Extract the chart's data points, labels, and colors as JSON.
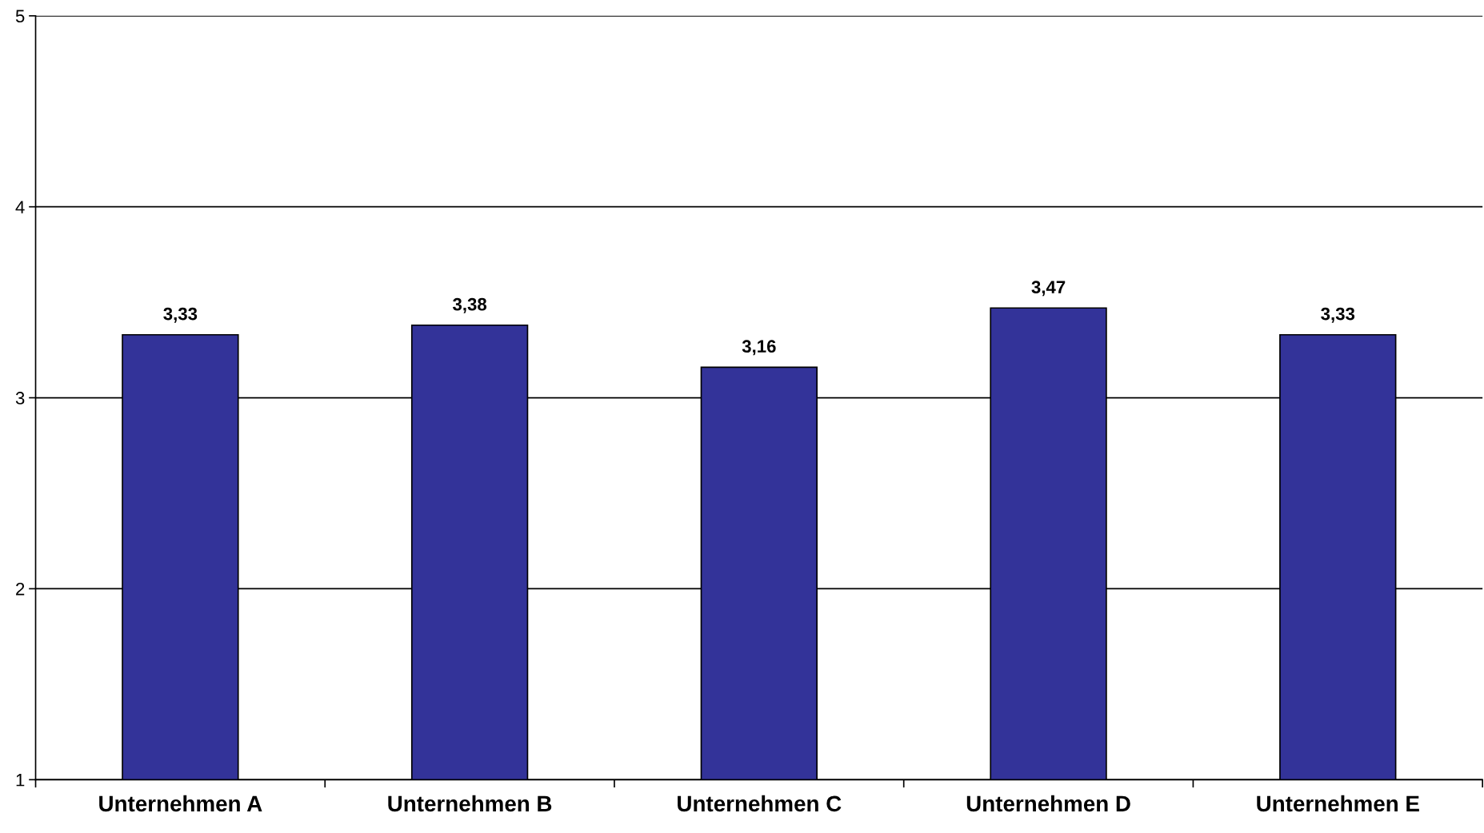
{
  "chart_data": {
    "type": "bar",
    "categories": [
      "Unternehmen A",
      "Unternehmen B",
      "Unternehmen C",
      "Unternehmen D",
      "Unternehmen E"
    ],
    "values": [
      3.33,
      3.38,
      3.16,
      3.47,
      3.33
    ],
    "value_labels": [
      "3,33",
      "3,38",
      "3,16",
      "3,47",
      "3,33"
    ],
    "color": "#333399",
    "ylim": [
      1,
      5
    ],
    "yticks": [
      1,
      2,
      3,
      4,
      5
    ],
    "grid": "y",
    "legend": false
  }
}
